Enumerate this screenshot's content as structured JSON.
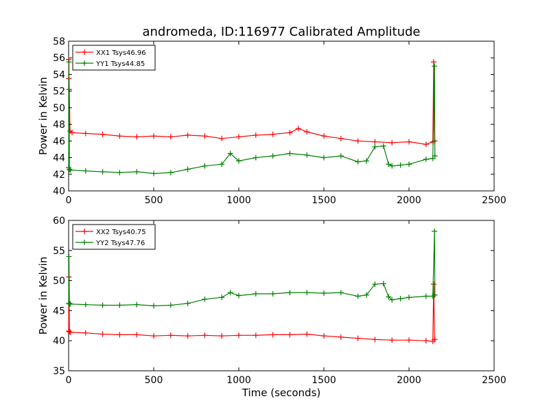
{
  "figure": {
    "title": "andromeda, ID:116977 Calibrated Amplitude",
    "marker": "+",
    "line_style": "solid with plus markers"
  },
  "chart_data": [
    {
      "type": "line",
      "title": "andromeda, ID:116977 Calibrated Amplitude",
      "xlabel": "",
      "ylabel": "Power in Kelvin",
      "xlim": [
        0,
        2500
      ],
      "ylim": [
        40,
        58
      ],
      "xticks": [
        0,
        500,
        1000,
        1500,
        2000,
        2500
      ],
      "yticks": [
        40,
        42,
        44,
        46,
        48,
        50,
        52,
        54,
        56,
        58
      ],
      "grid": false,
      "legend_placement": "top-left",
      "series": [
        {
          "name": "XX1 Tsys46.96",
          "color": "#ff0000",
          "x": [
            0,
            2,
            4,
            8,
            20,
            100,
            200,
            300,
            400,
            500,
            600,
            700,
            800,
            900,
            1000,
            1100,
            1200,
            1300,
            1350,
            1400,
            1500,
            1600,
            1700,
            1800,
            1900,
            2000,
            2100,
            2140,
            2145,
            2150,
            2152
          ],
          "y": [
            55.8,
            53.5,
            52.2,
            47.2,
            47.0,
            46.9,
            46.8,
            46.6,
            46.5,
            46.6,
            46.5,
            46.7,
            46.6,
            46.3,
            46.5,
            46.7,
            46.8,
            47.0,
            47.5,
            47.1,
            46.6,
            46.3,
            46.0,
            45.9,
            45.8,
            45.9,
            45.6,
            45.9,
            55.5,
            46.0,
            46.0
          ]
        },
        {
          "name": "YY1 Tsys44.85",
          "color": "#008000",
          "x": [
            0,
            2,
            5,
            10,
            100,
            200,
            300,
            400,
            500,
            600,
            700,
            800,
            900,
            950,
            1000,
            1100,
            1200,
            1300,
            1400,
            1500,
            1600,
            1700,
            1750,
            1800,
            1850,
            1880,
            1900,
            1950,
            2000,
            2100,
            2140,
            2150,
            2152
          ],
          "y": [
            42.8,
            55.5,
            42.6,
            42.5,
            42.4,
            42.3,
            42.2,
            42.3,
            42.1,
            42.2,
            42.6,
            43.0,
            43.2,
            44.5,
            43.6,
            44.0,
            44.2,
            44.5,
            44.3,
            44.0,
            44.2,
            43.5,
            43.6,
            45.3,
            45.4,
            43.2,
            43.0,
            43.1,
            43.2,
            43.8,
            43.9,
            55.0,
            44.2
          ]
        }
      ]
    },
    {
      "type": "line",
      "title": "",
      "xlabel": "Time (seconds)",
      "ylabel": "Power in Kelvin",
      "xlim": [
        0,
        2500
      ],
      "ylim": [
        35,
        60
      ],
      "xticks": [
        0,
        500,
        1000,
        1500,
        2000,
        2500
      ],
      "yticks": [
        35,
        40,
        45,
        50,
        55,
        60
      ],
      "grid": false,
      "legend_placement": "top-left",
      "series": [
        {
          "name": "XX2 Tsys40.75",
          "color": "#ff0000",
          "x": [
            0,
            2,
            5,
            10,
            100,
            200,
            300,
            400,
            500,
            600,
            700,
            800,
            900,
            1000,
            1100,
            1200,
            1300,
            1400,
            1500,
            1600,
            1700,
            1800,
            1900,
            2000,
            2100,
            2140,
            2145,
            2150,
            2152
          ],
          "y": [
            41.6,
            50.6,
            41.5,
            41.4,
            41.3,
            41.1,
            41.0,
            41.0,
            40.8,
            40.9,
            40.8,
            40.9,
            40.8,
            40.9,
            40.9,
            41.0,
            41.0,
            41.1,
            40.8,
            40.6,
            40.4,
            40.2,
            40.1,
            40.1,
            40.0,
            39.9,
            49.4,
            40.2,
            40.2
          ]
        },
        {
          "name": "YY2 Tsys47.76",
          "color": "#008000",
          "x": [
            0,
            2,
            5,
            10,
            100,
            200,
            300,
            400,
            500,
            600,
            700,
            800,
            900,
            950,
            1000,
            1100,
            1200,
            1300,
            1400,
            1500,
            1600,
            1700,
            1750,
            1800,
            1850,
            1880,
            1900,
            1950,
            2000,
            2100,
            2140,
            2150,
            2152
          ],
          "y": [
            46.2,
            54.0,
            46.2,
            46.1,
            46.0,
            45.9,
            45.9,
            46.0,
            45.8,
            45.9,
            46.2,
            46.9,
            47.2,
            48.0,
            47.5,
            47.8,
            47.8,
            48.0,
            48.0,
            47.9,
            48.0,
            47.4,
            47.6,
            49.4,
            49.5,
            47.3,
            46.8,
            47.0,
            47.2,
            47.4,
            47.4,
            58.2,
            47.6
          ]
        }
      ]
    }
  ]
}
